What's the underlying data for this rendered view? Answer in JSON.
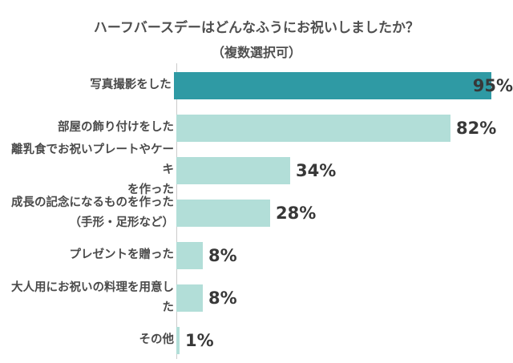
{
  "chart": {
    "title": "ハーフバースデーはどんなふうにお祝いしましたか？",
    "subtitle": "（複数選択可）"
  },
  "chart_data": {
    "type": "bar",
    "orientation": "horizontal",
    "title": "ハーフバースデーはどんなふうにお祝いしましたか？",
    "subtitle": "（複数選択可）",
    "xlabel": "",
    "ylabel": "",
    "xlim": [
      0,
      100
    ],
    "grid": false,
    "legend": false,
    "unit": "%",
    "categories": [
      "写真撮影をした",
      "部屋の飾り付けをした",
      "離乳食でお祝いプレートやケーキを作った",
      "成長の記念になるものを作った（手形・足形など）",
      "プレゼントを贈った",
      "大人用にお祝いの料理を用意した",
      "その他"
    ],
    "values": [
      95,
      82,
      34,
      28,
      8,
      8,
      1
    ],
    "rows": [
      {
        "label": "写真撮影をした",
        "value": 95,
        "pct_label": "95%",
        "highlight": true,
        "pct_inside": true
      },
      {
        "label": "部屋の飾り付けをした",
        "value": 82,
        "pct_label": "82%",
        "highlight": false,
        "pct_inside": false
      },
      {
        "label": "離乳食でお祝いプレートやケーキ\nを作った",
        "value": 34,
        "pct_label": "34%",
        "highlight": false,
        "pct_inside": false
      },
      {
        "label": "成長の記念になるものを作った\n（手形・足形など）",
        "value": 28,
        "pct_label": "28%",
        "highlight": false,
        "pct_inside": false
      },
      {
        "label": "プレゼントを贈った",
        "value": 8,
        "pct_label": "8%",
        "highlight": false,
        "pct_inside": false
      },
      {
        "label": "大人用にお祝いの料理を用意した",
        "value": 8,
        "pct_label": "8%",
        "highlight": false,
        "pct_inside": false
      },
      {
        "label": "その他",
        "value": 1,
        "pct_label": "1%",
        "highlight": false,
        "pct_inside": false
      }
    ],
    "colors": {
      "bar_highlight": "#2f9aa4",
      "bar_normal": "#b2ded8",
      "axis_line": "#cccccc",
      "label_text": "#4a4a4a",
      "value_text": "#383838",
      "title_text": "#4f4f4f",
      "background": "#ffffff"
    }
  }
}
